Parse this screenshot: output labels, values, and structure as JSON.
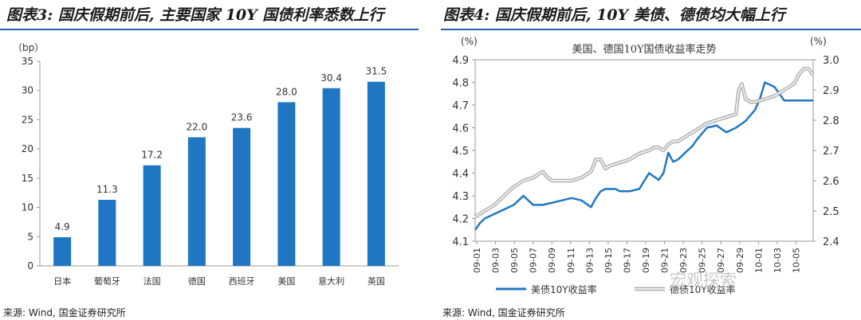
{
  "left_title": "图表3: 国庆假期前后, 主要国家 10Y 国债利率悉数上行",
  "right_title": "图表4: 国庆假期前后, 10Y 美债、德债均大幅上行",
  "left_source": "来源: Wind, 国金证券研究所",
  "right_source": "来源: Wind, 国金证券研究所",
  "watermark": "宏观探索",
  "colors": {
    "bar": "#1f77c4",
    "us": "#1f77c4",
    "de": "#c8c8c8",
    "rule": "#1f5fa8"
  },
  "chart_data": [
    {
      "type": "bar",
      "title": "",
      "unit_label": "（bp）",
      "categories": [
        "日本",
        "葡萄牙",
        "法国",
        "德国",
        "西班牙",
        "美国",
        "意大利",
        "英国"
      ],
      "values": [
        4.9,
        11.3,
        17.2,
        22.0,
        23.6,
        28.0,
        30.4,
        31.5
      ],
      "value_labels": [
        "4.9",
        "11.3",
        "17.2",
        "22.0",
        "23.6",
        "28.0",
        "30.4",
        "31.5"
      ],
      "ylim": [
        0,
        35
      ],
      "yticks": [
        "0",
        "5",
        "10",
        "15",
        "20",
        "25",
        "30",
        "35"
      ],
      "grid": false
    },
    {
      "type": "line",
      "title": "美国、德国10Y国债收益率走势",
      "left_unit": "(%)",
      "right_unit": "(%)",
      "x_labels": [
        "09-01",
        "09-03",
        "09-05",
        "09-07",
        "09-09",
        "09-11",
        "09-13",
        "09-15",
        "09-17",
        "09-19",
        "09-21",
        "09-23",
        "09-25",
        "09-27",
        "09-29",
        "10-01",
        "10-03",
        "10-05"
      ],
      "ylim_left": [
        4.1,
        4.9
      ],
      "yticks_left": [
        "4.1",
        "4.2",
        "4.3",
        "4.4",
        "4.5",
        "4.6",
        "4.7",
        "4.8",
        "4.9"
      ],
      "ylim_right": [
        2.4,
        3.0
      ],
      "yticks_right": [
        "2.4",
        "2.5",
        "2.6",
        "2.7",
        "2.8",
        "2.9",
        "3.0"
      ],
      "legend": "bottom",
      "series": [
        {
          "name": "美债10Y收益率",
          "axis": "left",
          "x": [
            0,
            0.5,
            1,
            2,
            3,
            4,
            4.5,
            5,
            5.5,
            6,
            7,
            8,
            9,
            10,
            11,
            12,
            12.5,
            13,
            13.5,
            14,
            14.5,
            15,
            16,
            17,
            18,
            19,
            19.5,
            20,
            20.5,
            21,
            21.5,
            22,
            22.5,
            23,
            24,
            25,
            26,
            27,
            28,
            29,
            29.5,
            30,
            31,
            32,
            33,
            34,
            35
          ],
          "values": [
            4.15,
            4.18,
            4.2,
            4.22,
            4.24,
            4.26,
            4.28,
            4.3,
            4.28,
            4.26,
            4.26,
            4.27,
            4.28,
            4.29,
            4.28,
            4.25,
            4.29,
            4.32,
            4.33,
            4.33,
            4.33,
            4.32,
            4.32,
            4.33,
            4.4,
            4.37,
            4.4,
            4.49,
            4.45,
            4.46,
            4.48,
            4.5,
            4.52,
            4.55,
            4.6,
            4.61,
            4.58,
            4.6,
            4.63,
            4.68,
            4.73,
            4.8,
            4.78,
            4.72,
            4.72,
            4.72,
            4.72
          ]
        },
        {
          "name": "德债10Y收益率",
          "axis": "right",
          "x": [
            0,
            1,
            2,
            3,
            4,
            5,
            6,
            6.5,
            7,
            7.5,
            8,
            9,
            10,
            11,
            12,
            12.5,
            13,
            13.5,
            14,
            15,
            16,
            17,
            18,
            18.5,
            19,
            19.5,
            20,
            20.5,
            21,
            22,
            23,
            24,
            25,
            26,
            27,
            27.3,
            27.6,
            28,
            28.5,
            29,
            30,
            31,
            32,
            33,
            33.5,
            34,
            34.5,
            35
          ],
          "values": [
            2.48,
            2.5,
            2.52,
            2.55,
            2.58,
            2.6,
            2.61,
            2.62,
            2.63,
            2.61,
            2.6,
            2.6,
            2.6,
            2.61,
            2.63,
            2.67,
            2.67,
            2.64,
            2.65,
            2.66,
            2.67,
            2.69,
            2.7,
            2.71,
            2.71,
            2.7,
            2.72,
            2.73,
            2.73,
            2.75,
            2.77,
            2.79,
            2.8,
            2.81,
            2.82,
            2.9,
            2.92,
            2.87,
            2.86,
            2.86,
            2.87,
            2.88,
            2.9,
            2.92,
            2.95,
            2.97,
            2.97,
            2.95
          ]
        }
      ]
    }
  ]
}
